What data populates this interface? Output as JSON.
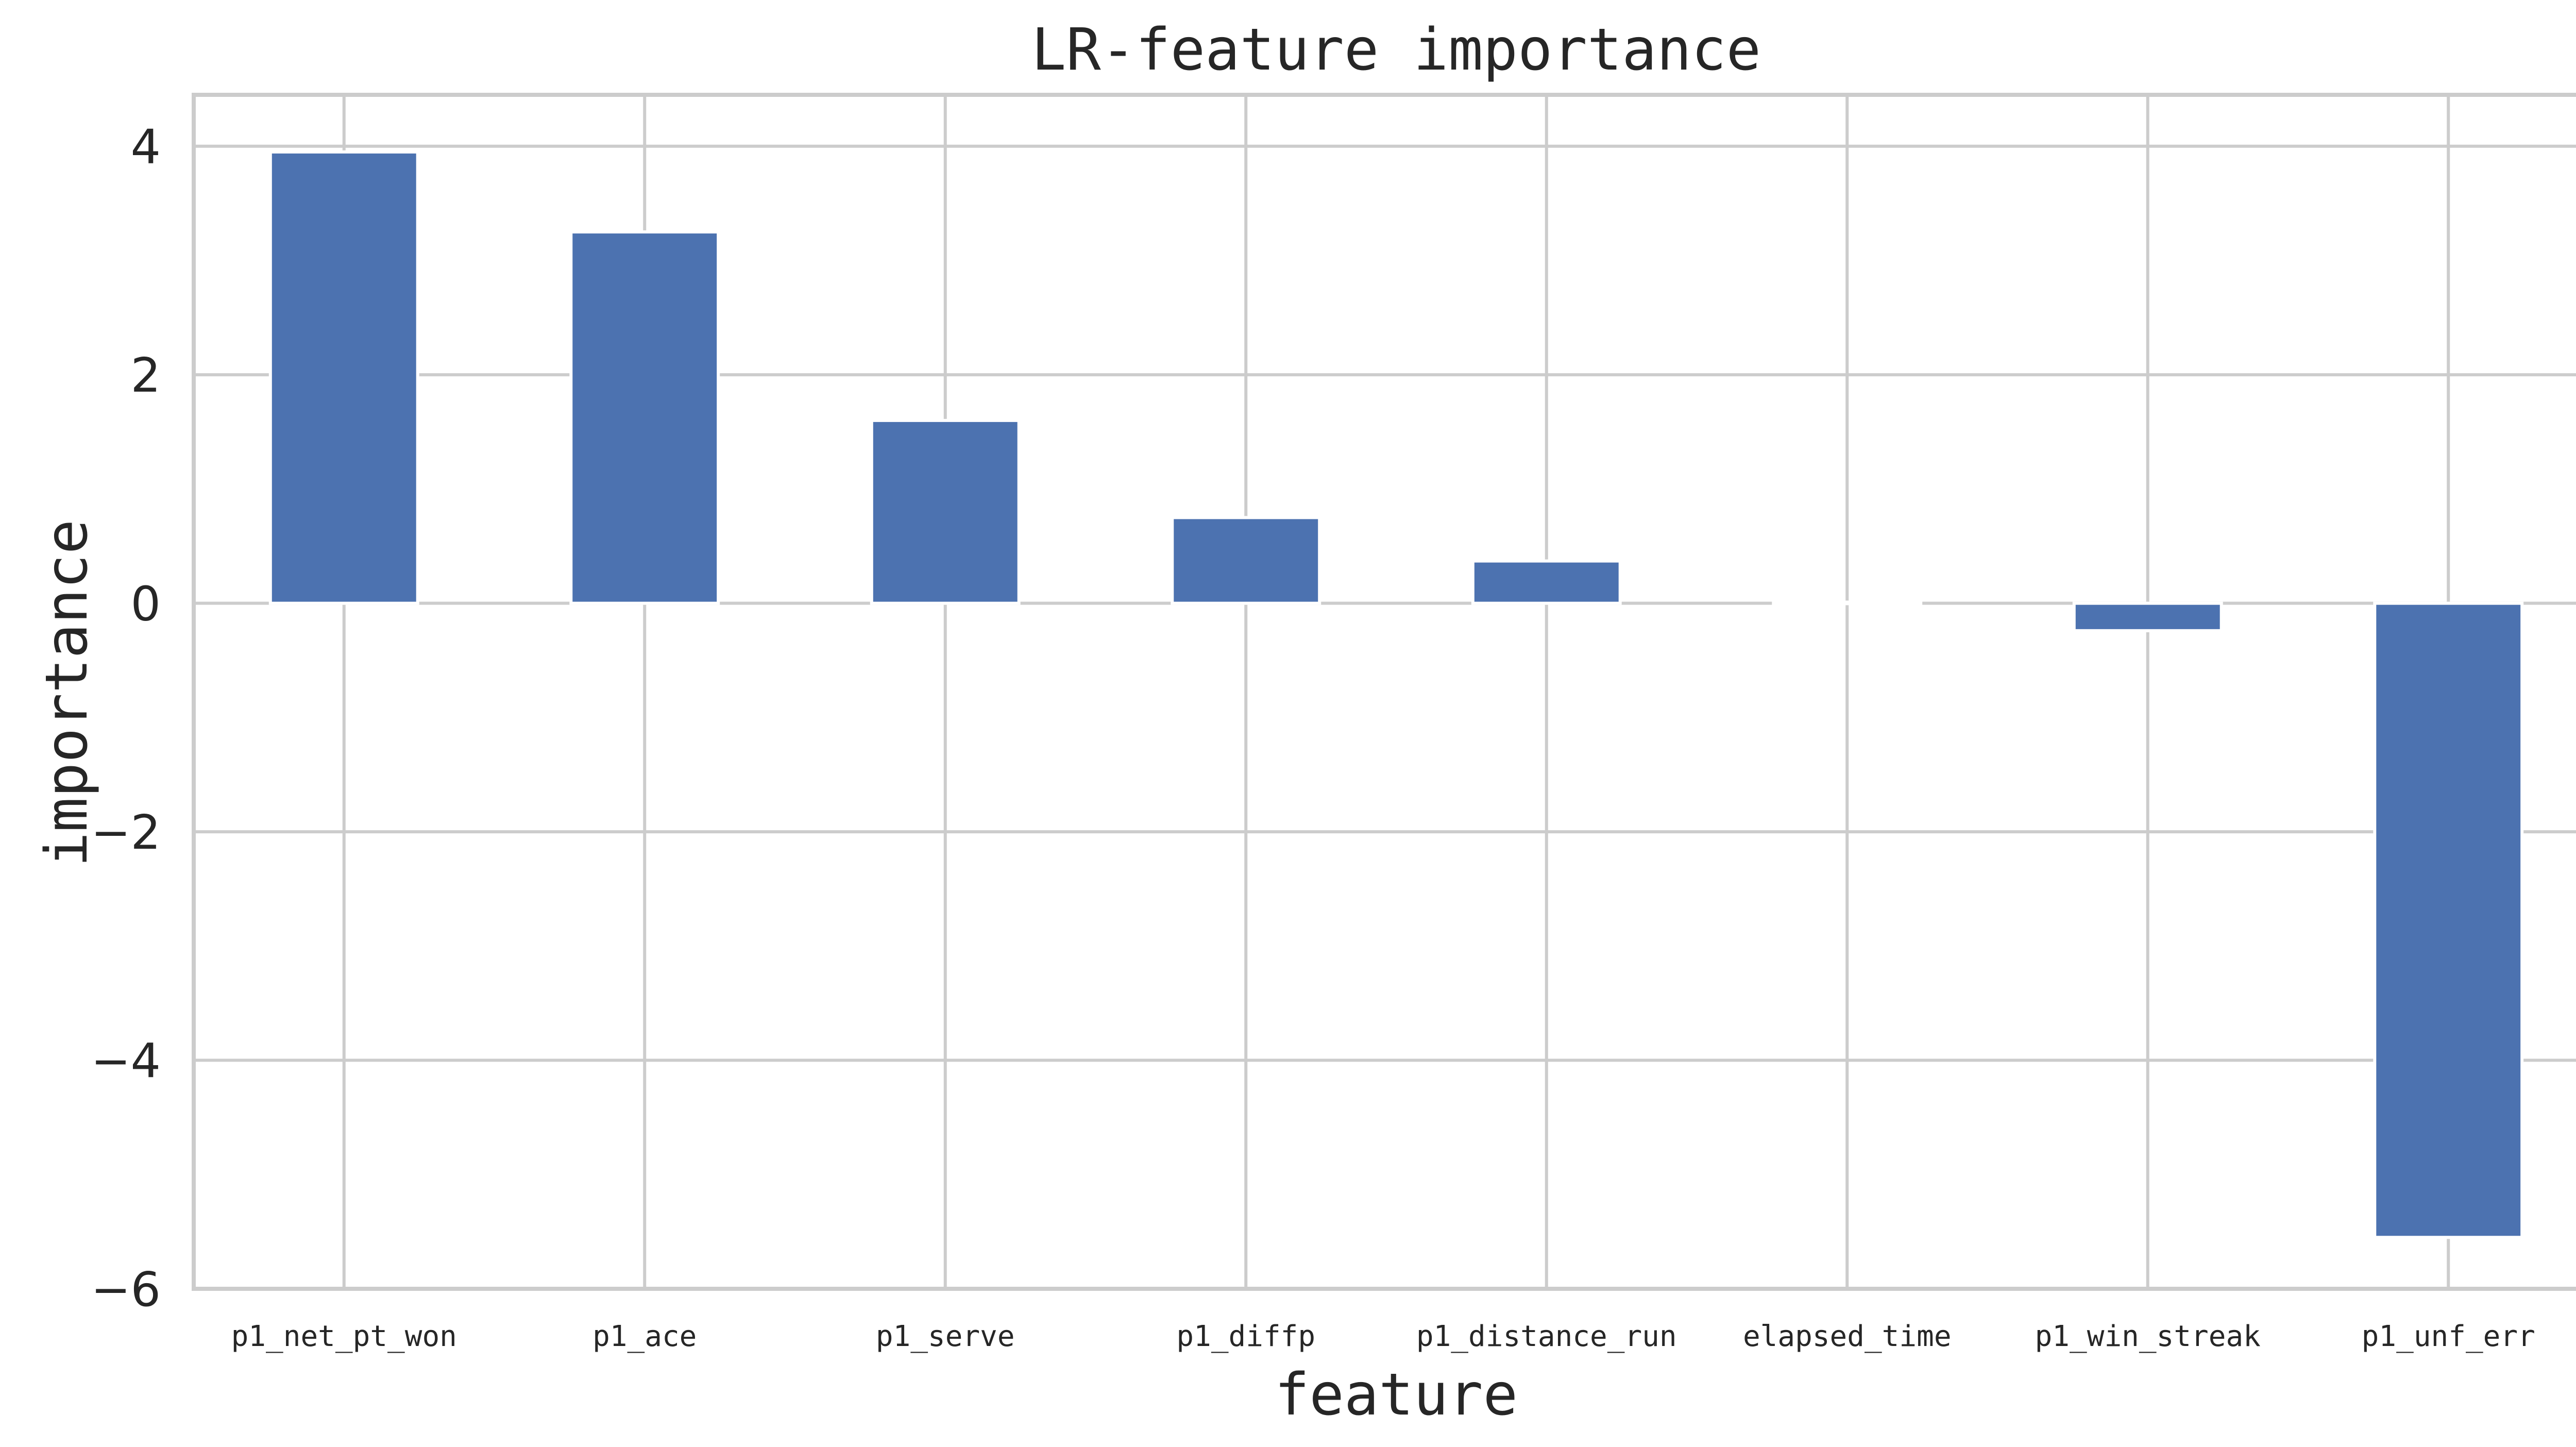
{
  "chart_data": {
    "type": "bar",
    "title": "LR-feature importance",
    "xlabel": "feature",
    "ylabel": "importance",
    "categories": [
      "p1_net_pt_won",
      "p1_ace",
      "p1_serve",
      "p1_diffp",
      "p1_distance_run",
      "elapsed_time",
      "p1_win_streak",
      "p1_unf_err"
    ],
    "values": [
      3.95,
      3.25,
      1.6,
      0.75,
      0.37,
      0.01,
      -0.24,
      -5.55
    ],
    "ylim": [
      -6,
      4.45
    ],
    "yticks": [
      4,
      2,
      0,
      -2,
      -4,
      -6
    ],
    "ytick_labels": [
      "4",
      "2",
      "0",
      "−2",
      "−4",
      "−6"
    ],
    "grid": true,
    "legend": "none",
    "bar_color": "#4c72b0",
    "grid_color": "#cccccc"
  }
}
